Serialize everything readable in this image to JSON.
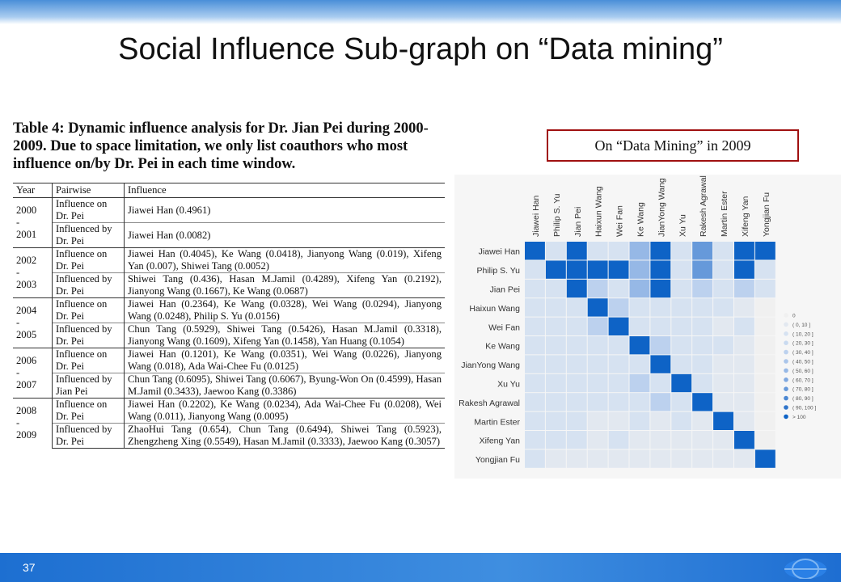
{
  "slide": {
    "title": "Social Influence Sub-graph on “Data mining”",
    "page_number": "37"
  },
  "table": {
    "caption": "Table 4: Dynamic influence analysis for Dr. Jian Pei during 2000-2009. Due to space limitation, we only list coauthors who most influence on/by Dr. Pei in each time window.",
    "headers": [
      "Year",
      "Pairwise",
      "Influence"
    ],
    "groups": [
      {
        "years": [
          "2000",
          "-",
          "2001"
        ],
        "rows": [
          {
            "pairwise": "Influence on Dr. Pei",
            "influence": "Jiawei Han (0.4961)"
          },
          {
            "pairwise": "Influenced by Dr. Pei",
            "influence": "Jiawei Han (0.0082)"
          }
        ]
      },
      {
        "years": [
          "2002",
          "-",
          "2003"
        ],
        "rows": [
          {
            "pairwise": "Influence on Dr. Pei",
            "influence": "Jiawei Han (0.4045), Ke Wang (0.0418), Jianyong Wang (0.019), Xifeng Yan (0.007), Shiwei Tang (0.0052)"
          },
          {
            "pairwise": "Influenced by Dr. Pei",
            "influence": "Shiwei Tang (0.436), Hasan M.Jamil (0.4289), Xifeng Yan (0.2192), Jianyong Wang (0.1667), Ke Wang (0.0687)"
          }
        ]
      },
      {
        "years": [
          "2004",
          "-",
          "2005"
        ],
        "rows": [
          {
            "pairwise": "Influence on Dr. Pei",
            "influence": "Jiawei Han (0.2364), Ke Wang (0.0328), Wei Wang (0.0294), Jianyong Wang (0.0248), Philip S. Yu (0.0156)"
          },
          {
            "pairwise": "Influenced by Dr. Pei",
            "influence": "Chun Tang (0.5929), Shiwei Tang (0.5426), Hasan M.Jamil (0.3318), Jianyong Wang (0.1609), Xifeng Yan (0.1458), Yan Huang (0.1054)"
          }
        ]
      },
      {
        "years": [
          "2006",
          "-",
          "2007"
        ],
        "rows": [
          {
            "pairwise": "Influence on Dr. Pei",
            "influence": "Jiawei Han (0.1201), Ke Wang (0.0351), Wei Wang (0.0226), Jianyong Wang (0.018), Ada Wai-Chee Fu (0.0125)"
          },
          {
            "pairwise": "Influenced by Jian Pei",
            "influence": "Chun Tang (0.6095), Shiwei Tang (0.6067), Byung-Won On (0.4599), Hasan M.Jamil (0.3433), Jaewoo Kang (0.3386)"
          }
        ]
      },
      {
        "years": [
          "2008",
          "-",
          "2009"
        ],
        "rows": [
          {
            "pairwise": "Influence on Dr. Pei",
            "influence": "Jiawei Han (0.2202), Ke Wang (0.0234), Ada Wai-Chee Fu (0.0208), Wei Wang (0.011), Jianyong Wang (0.0095)"
          },
          {
            "pairwise": "Influenced by Dr. Pei",
            "influence": "ZhaoHui Tang (0.654), Chun Tang (0.6494), Shiwei Tang (0.5923), Zhengzheng Xing (0.5549), Hasan M.Jamil (0.3333), Jaewoo Kang (0.3057)"
          }
        ]
      }
    ]
  },
  "heatmap_label": "On “Data Mining” in 2009",
  "chart_data": {
    "type": "heatmap",
    "x": [
      "Jiawei Han",
      "Philip S. Yu",
      "Jian Pei",
      "Haixun Wang",
      "Wei Fan",
      "Ke Wang",
      "JianYong Wang",
      "Xu Yu",
      "Rakesh Agrawal",
      "Martin Ester",
      "Xifeng Yan",
      "Yongjian Fu"
    ],
    "y": [
      "Jiawei Han",
      "Philip S. Yu",
      "Jian Pei",
      "Haixun Wang",
      "Wei Fan",
      "Ke Wang",
      "JianYong Wang",
      "Xu Yu",
      "Rakesh Agrawal",
      "Martin Ester",
      "Xifeng Yan",
      "Yongjian Fu"
    ],
    "levels": [
      [
        11,
        2,
        11,
        2,
        2,
        6,
        11,
        2,
        8,
        2,
        11,
        11
      ],
      [
        2,
        11,
        11,
        11,
        11,
        6,
        11,
        2,
        8,
        2,
        11,
        2
      ],
      [
        2,
        2,
        11,
        4,
        2,
        6,
        11,
        2,
        4,
        2,
        4,
        2
      ],
      [
        2,
        2,
        2,
        11,
        4,
        2,
        2,
        2,
        2,
        2,
        1,
        0
      ],
      [
        2,
        2,
        2,
        4,
        11,
        2,
        2,
        2,
        2,
        1,
        2,
        0
      ],
      [
        2,
        2,
        2,
        2,
        2,
        11,
        4,
        2,
        2,
        2,
        1,
        0
      ],
      [
        2,
        2,
        2,
        2,
        2,
        2,
        11,
        2,
        2,
        1,
        1,
        0
      ],
      [
        2,
        2,
        2,
        2,
        2,
        4,
        2,
        11,
        2,
        1,
        1,
        0
      ],
      [
        2,
        2,
        2,
        2,
        2,
        2,
        4,
        2,
        11,
        1,
        1,
        0
      ],
      [
        2,
        2,
        2,
        1,
        1,
        2,
        1,
        2,
        1,
        11,
        1,
        0
      ],
      [
        2,
        2,
        2,
        1,
        2,
        1,
        1,
        1,
        1,
        1,
        11,
        0
      ],
      [
        2,
        1,
        1,
        1,
        1,
        1,
        1,
        1,
        1,
        1,
        1,
        11
      ]
    ],
    "legend": [
      "0",
      "( 0, 10 ]",
      "( 10, 20 ]",
      "( 20, 30 ]",
      "( 30, 40 ]",
      "( 40, 50 ]",
      "( 50, 60 ]",
      "( 60, 70 ]",
      "( 70, 80 ]",
      "( 80, 90 ]",
      "( 90, 100 ]",
      "> 100"
    ],
    "legend_colors": [
      "#f0f0f0",
      "#e2e8f0",
      "#d6e2f1",
      "#c9daf0",
      "#bcd1ee",
      "#aac5ea",
      "#96b8e6",
      "#7fa8e0",
      "#6699da",
      "#4b87d2",
      "#2f74ca",
      "#0e63c6"
    ],
    "legend_placement": "right"
  }
}
